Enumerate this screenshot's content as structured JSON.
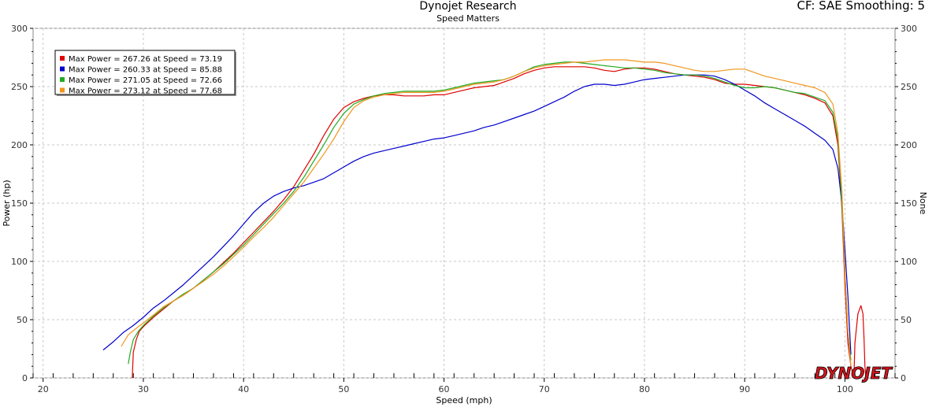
{
  "header": {
    "title": "Dynojet Research",
    "subtitle": "Speed Matters",
    "correction": "CF: SAE Smoothing: 5"
  },
  "logo": {
    "text": "DYNOJET"
  },
  "chart_data": {
    "type": "line",
    "xlabel": "Speed (mph)",
    "ylabel": "Power (hp)",
    "y2label": "None",
    "xlim": [
      19,
      105
    ],
    "ylim": [
      0,
      300
    ],
    "xticks": [
      20,
      30,
      40,
      50,
      60,
      70,
      80,
      90,
      100
    ],
    "yticks": [
      0,
      50,
      100,
      150,
      200,
      250,
      300
    ],
    "grid": true,
    "legend_position": "top-left",
    "series": [
      {
        "name": "Max Power = 267.26 at Speed = 73.19",
        "color": "#e00000",
        "x": [
          28.9,
          29.0,
          29.3,
          29.6,
          30.0,
          31,
          32,
          33,
          34,
          35,
          36,
          37,
          38,
          39,
          40,
          41,
          42,
          43,
          44,
          45,
          46,
          47,
          48,
          49,
          50,
          51,
          52,
          53,
          54,
          55,
          56,
          57,
          58,
          59,
          60,
          61,
          62,
          63,
          64,
          65,
          66,
          67,
          68,
          69,
          70,
          71,
          72,
          73,
          74,
          75,
          76,
          77,
          78,
          79,
          80,
          81,
          82,
          83,
          84,
          85,
          86,
          87,
          88,
          89,
          90,
          91,
          92,
          93,
          94,
          95,
          96,
          97,
          98,
          98.8,
          99.3,
          99.7,
          100.0,
          100.3,
          100.6,
          100.9,
          101.0,
          101.3,
          101.6,
          101.8,
          101.9,
          102.0,
          102.1
        ],
        "y": [
          0,
          22,
          33,
          40,
          44,
          52,
          59,
          66,
          71,
          77,
          84,
          91,
          99,
          107,
          116,
          125,
          134,
          143,
          153,
          164,
          178,
          192,
          208,
          222,
          232,
          237,
          240,
          242,
          243,
          243,
          242,
          242,
          242,
          243,
          243,
          245,
          247,
          249,
          250,
          251,
          254,
          257,
          261,
          264,
          266,
          267,
          267,
          267,
          267,
          266,
          264,
          263,
          265,
          266,
          266,
          265,
          263,
          261,
          260,
          259,
          258,
          256,
          253,
          252,
          252,
          251,
          250,
          249,
          247,
          245,
          243,
          240,
          236,
          225,
          200,
          145,
          80,
          30,
          10,
          0,
          30,
          55,
          62,
          55,
          35,
          10,
          0
        ]
      },
      {
        "name": "Max Power = 260.33 at Speed = 85.88",
        "color": "#0000cc",
        "x": [
          26,
          27,
          28,
          29,
          30,
          31,
          32,
          33,
          34,
          35,
          36,
          37,
          38,
          39,
          40,
          41,
          42,
          43,
          44,
          45,
          46,
          47,
          48,
          49,
          50,
          51,
          52,
          53,
          54,
          55,
          56,
          57,
          58,
          59,
          60,
          61,
          62,
          63,
          64,
          65,
          66,
          67,
          68,
          69,
          70,
          71,
          72,
          73,
          74,
          75,
          76,
          77,
          78,
          79,
          80,
          81,
          82,
          83,
          84,
          85,
          86,
          87,
          88,
          89,
          90,
          91,
          92,
          93,
          94,
          95,
          96,
          97,
          98,
          98.8,
          99.3,
          99.7,
          100.0,
          100.3,
          100.6
        ],
        "y": [
          24,
          31,
          39,
          45,
          52,
          60,
          66,
          73,
          80,
          88,
          96,
          104,
          113,
          122,
          132,
          142,
          150,
          156,
          160,
          163,
          165,
          168,
          171,
          176,
          181,
          186,
          190,
          193,
          195,
          197,
          199,
          201,
          203,
          205,
          206,
          208,
          210,
          212,
          215,
          217,
          220,
          223,
          226,
          229,
          233,
          237,
          241,
          246,
          250,
          252,
          252,
          251,
          252,
          254,
          256,
          257,
          258,
          259,
          260,
          260,
          260,
          259,
          256,
          252,
          247,
          242,
          236,
          231,
          226,
          221,
          216,
          210,
          204,
          196,
          180,
          150,
          110,
          70,
          20
        ]
      },
      {
        "name": "Max Power = 271.05 at Speed = 72.66",
        "color": "#22aa22",
        "x": [
          28.5,
          28.7,
          29.0,
          29.5,
          30,
          31,
          32,
          33,
          34,
          35,
          36,
          37,
          38,
          39,
          40,
          41,
          42,
          43,
          44,
          45,
          46,
          47,
          48,
          49,
          50,
          51,
          52,
          53,
          54,
          55,
          56,
          57,
          58,
          59,
          60,
          61,
          62,
          63,
          64,
          65,
          66,
          67,
          68,
          69,
          70,
          71,
          72,
          73,
          74,
          75,
          76,
          77,
          78,
          79,
          80,
          81,
          82,
          83,
          84,
          85,
          86,
          87,
          88,
          89,
          90,
          91,
          92,
          93,
          94,
          95,
          96,
          97,
          98,
          98.8,
          99.3,
          99.7,
          100.0,
          100.3,
          100.6
        ],
        "y": [
          12,
          22,
          33,
          40,
          45,
          53,
          60,
          66,
          72,
          77,
          84,
          91,
          98,
          106,
          114,
          123,
          132,
          141,
          150,
          160,
          172,
          186,
          200,
          215,
          227,
          235,
          239,
          242,
          244,
          245,
          246,
          246,
          246,
          246,
          247,
          249,
          251,
          253,
          254,
          255,
          256,
          259,
          263,
          267,
          269,
          270,
          271,
          271,
          270,
          269,
          268,
          267,
          266,
          266,
          265,
          264,
          262,
          261,
          260,
          260,
          259,
          257,
          254,
          251,
          249,
          249,
          250,
          249,
          247,
          245,
          244,
          241,
          238,
          228,
          205,
          150,
          90,
          40,
          15
        ]
      },
      {
        "name": "Max Power = 273.12 at Speed = 77.68",
        "color": "#f0961e",
        "x": [
          27.8,
          28.5,
          29.5,
          30,
          31,
          32,
          33,
          34,
          35,
          36,
          37,
          38,
          39,
          40,
          41,
          42,
          43,
          44,
          45,
          46,
          47,
          48,
          49,
          50,
          51,
          52,
          53,
          54,
          55,
          56,
          57,
          58,
          59,
          60,
          61,
          62,
          63,
          64,
          65,
          66,
          67,
          68,
          69,
          70,
          71,
          72,
          73,
          74,
          75,
          76,
          77,
          78,
          79,
          80,
          81,
          82,
          83,
          84,
          85,
          86,
          87,
          88,
          89,
          90,
          91,
          92,
          93,
          94,
          95,
          96,
          97,
          98,
          98.8,
          99.3,
          99.7,
          100.0,
          100.3,
          100.6
        ],
        "y": [
          27,
          37,
          44,
          47,
          54,
          61,
          66,
          71,
          77,
          83,
          89,
          96,
          104,
          112,
          121,
          129,
          138,
          148,
          158,
          168,
          180,
          192,
          205,
          220,
          232,
          238,
          241,
          243,
          244,
          245,
          245,
          245,
          245,
          246,
          248,
          250,
          252,
          253,
          254,
          256,
          259,
          263,
          266,
          268,
          269,
          270,
          271,
          271,
          272,
          273,
          273,
          273,
          272,
          271,
          271,
          270,
          268,
          266,
          264,
          263,
          263,
          264,
          265,
          265,
          262,
          259,
          257,
          255,
          253,
          251,
          249,
          245,
          235,
          210,
          160,
          90,
          40,
          10
        ]
      }
    ]
  }
}
